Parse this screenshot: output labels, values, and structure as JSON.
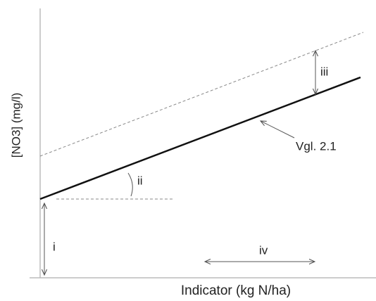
{
  "axes": {
    "x_label": "Indicator (kg N/ha)",
    "y_label": "[NO3] (mg/l)"
  },
  "annotations": {
    "intercept": "i",
    "slope": "ii",
    "offset": "iii",
    "range": "iv",
    "equation": "Vgl. 2.1"
  }
}
